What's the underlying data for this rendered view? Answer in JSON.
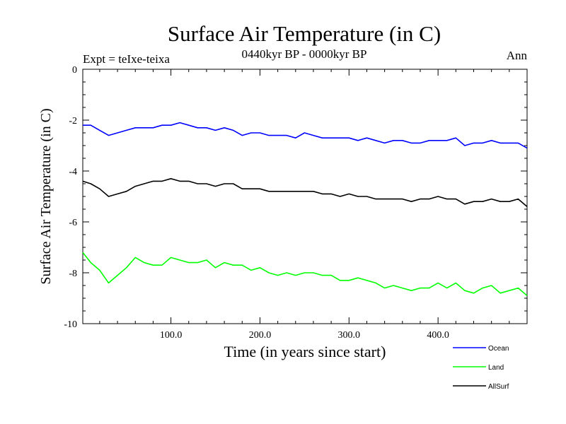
{
  "header": {
    "title": "Surface Air Temperature (in C)",
    "subtitle": "0440kyr BP - 0000kyr BP",
    "experiment": "Expt = teIxe-teixa",
    "season": "Ann"
  },
  "colors": {
    "ocean": "#0000ff",
    "land": "#00ff00",
    "allsurf": "#000000",
    "axis": "#000000"
  },
  "chart_data": {
    "type": "line",
    "title": "Surface Air Temperature (in C)",
    "xlabel": "Time (in years since start)",
    "ylabel": "Surface Air Temperature (in C)",
    "xlim": [
      1,
      500
    ],
    "ylim": [
      -10,
      0
    ],
    "xticks": [
      100,
      200,
      300,
      400
    ],
    "xtick_labels": [
      "100.0",
      "200.0",
      "300.0",
      "400.0"
    ],
    "yticks": [
      0,
      -2,
      -4,
      -6,
      -8,
      -10
    ],
    "ytick_labels": [
      "0",
      "-2",
      "-4",
      "-6",
      "-8",
      "-10"
    ],
    "legend_position": "bottom-right outside",
    "x": [
      1,
      10,
      20,
      30,
      40,
      50,
      60,
      70,
      80,
      90,
      100,
      110,
      120,
      130,
      140,
      150,
      160,
      170,
      180,
      190,
      200,
      210,
      220,
      230,
      240,
      250,
      260,
      270,
      280,
      290,
      300,
      310,
      320,
      330,
      340,
      350,
      360,
      370,
      380,
      390,
      400,
      410,
      420,
      430,
      440,
      450,
      460,
      470,
      480,
      490,
      500
    ],
    "series": [
      {
        "name": "Ocean",
        "key": "ocean",
        "values": [
          -2.2,
          -2.2,
          -2.4,
          -2.6,
          -2.5,
          -2.4,
          -2.3,
          -2.3,
          -2.3,
          -2.2,
          -2.2,
          -2.1,
          -2.2,
          -2.3,
          -2.3,
          -2.4,
          -2.3,
          -2.4,
          -2.6,
          -2.5,
          -2.5,
          -2.6,
          -2.6,
          -2.6,
          -2.7,
          -2.5,
          -2.6,
          -2.7,
          -2.7,
          -2.7,
          -2.7,
          -2.8,
          -2.7,
          -2.8,
          -2.9,
          -2.8,
          -2.8,
          -2.9,
          -2.9,
          -2.8,
          -2.8,
          -2.8,
          -2.7,
          -3.0,
          -2.9,
          -2.9,
          -2.8,
          -2.9,
          -2.9,
          -2.9,
          -3.1
        ]
      },
      {
        "name": "Land",
        "key": "land",
        "values": [
          -7.2,
          -7.6,
          -7.9,
          -8.4,
          -8.1,
          -7.8,
          -7.4,
          -7.6,
          -7.7,
          -7.7,
          -7.4,
          -7.5,
          -7.6,
          -7.6,
          -7.5,
          -7.8,
          -7.6,
          -7.7,
          -7.7,
          -7.9,
          -7.8,
          -8.0,
          -8.1,
          -8.0,
          -8.1,
          -8.0,
          -8.0,
          -8.1,
          -8.1,
          -8.3,
          -8.3,
          -8.2,
          -8.3,
          -8.4,
          -8.6,
          -8.5,
          -8.6,
          -8.7,
          -8.6,
          -8.6,
          -8.4,
          -8.6,
          -8.4,
          -8.7,
          -8.8,
          -8.6,
          -8.5,
          -8.8,
          -8.7,
          -8.6,
          -8.9
        ]
      },
      {
        "name": "AllSurf",
        "key": "allsurf",
        "values": [
          -4.4,
          -4.5,
          -4.7,
          -5.0,
          -4.9,
          -4.8,
          -4.6,
          -4.5,
          -4.4,
          -4.4,
          -4.3,
          -4.4,
          -4.4,
          -4.5,
          -4.5,
          -4.6,
          -4.5,
          -4.5,
          -4.7,
          -4.7,
          -4.7,
          -4.8,
          -4.8,
          -4.8,
          -4.8,
          -4.8,
          -4.8,
          -4.9,
          -4.9,
          -5.0,
          -4.9,
          -5.0,
          -5.0,
          -5.1,
          -5.1,
          -5.1,
          -5.1,
          -5.2,
          -5.1,
          -5.1,
          -5.0,
          -5.1,
          -5.1,
          -5.3,
          -5.2,
          -5.2,
          -5.1,
          -5.2,
          -5.2,
          -5.1,
          -5.4
        ]
      }
    ]
  }
}
